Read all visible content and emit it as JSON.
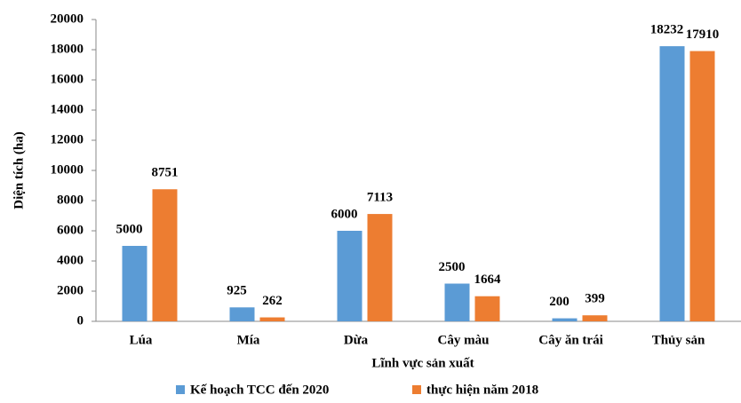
{
  "chart_data": {
    "type": "bar",
    "categories": [
      "Lúa",
      "Mía",
      "Dừa",
      "Cây màu",
      "Cây ăn trái",
      "Thủy sản"
    ],
    "series": [
      {
        "name": "Kế hoạch TCC đến 2020",
        "color": "#5b9bd5",
        "values": [
          5000,
          925,
          6000,
          2500,
          200,
          18232
        ]
      },
      {
        "name": "thực hiện năm 2018",
        "color": "#ed7d31",
        "values": [
          8751,
          262,
          7113,
          1664,
          399,
          17910
        ]
      }
    ],
    "xlabel": "Lĩnh vực sản xuất",
    "ylabel": "Diện tích (ha)",
    "ylim": [
      0,
      20000
    ],
    "yticks": [
      0,
      2000,
      4000,
      6000,
      8000,
      10000,
      12000,
      14000,
      16000,
      18000,
      20000
    ],
    "grid": false,
    "legend": "bottom"
  }
}
